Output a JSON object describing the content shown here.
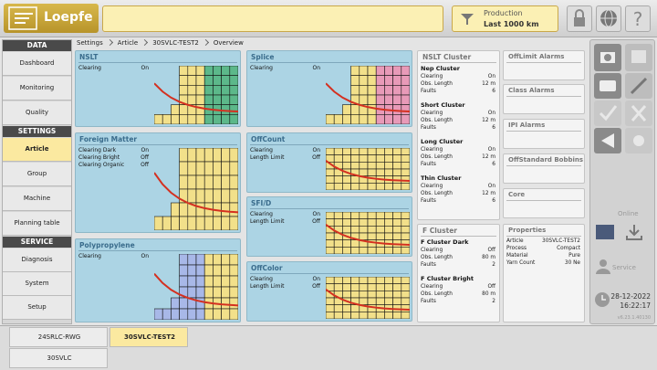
{
  "header": {
    "logo": "Loepfe",
    "production_label": "Production",
    "production_value": "Last 1000 km"
  },
  "sidebar": [
    {
      "title": "DATA",
      "items": [
        {
          "label": "Dashboard"
        },
        {
          "label": "Monitoring"
        },
        {
          "label": "Quality"
        }
      ]
    },
    {
      "title": "SETTINGS",
      "items": [
        {
          "label": "Article",
          "selected": true
        },
        {
          "label": "Group"
        },
        {
          "label": "Machine"
        },
        {
          "label": "Planning table"
        }
      ]
    },
    {
      "title": "SERVICE",
      "items": [
        {
          "label": "Diagnosis"
        },
        {
          "label": "System"
        },
        {
          "label": "Setup"
        }
      ]
    }
  ],
  "breadcrumb": [
    "Settings",
    "Article",
    "30SVLC-TEST2",
    "Overview"
  ],
  "panels": [
    {
      "title": "NSLT",
      "rows": [
        [
          "Clearing",
          "On"
        ]
      ]
    },
    {
      "title": "Foreign Matter",
      "rows": [
        [
          "Clearing Dark",
          "On"
        ],
        [
          "Clearing Bright",
          "Off"
        ],
        [
          "Clearing Organic",
          "Off"
        ]
      ]
    },
    {
      "title": "Polypropylene",
      "rows": [
        [
          "Clearing",
          "On"
        ]
      ]
    },
    {
      "title": "Splice",
      "rows": [
        [
          "Clearing",
          "On"
        ]
      ]
    },
    {
      "title": "OffCount",
      "rows": [
        [
          "Clearing",
          "On"
        ],
        [
          "Length Limit",
          "Off"
        ]
      ]
    },
    {
      "title": "SFI/D",
      "rows": [
        [
          "Clearing",
          "On"
        ],
        [
          "Length Limit",
          "Off"
        ]
      ]
    },
    {
      "title": "OffColor",
      "rows": [
        [
          "Clearing",
          "On"
        ],
        [
          "Length Limit",
          "Off"
        ]
      ]
    }
  ],
  "clusters": [
    {
      "title": "NSLT Cluster",
      "groups": [
        {
          "name": "Nep Cluster",
          "rows": [
            [
              "Clearing",
              "On"
            ],
            [
              "Obs. Length",
              "12 m"
            ],
            [
              "Faults",
              "6"
            ]
          ]
        },
        {
          "name": "Short Cluster",
          "rows": [
            [
              "Clearing",
              "On"
            ],
            [
              "Obs. Length",
              "12 m"
            ],
            [
              "Faults",
              "6"
            ]
          ]
        },
        {
          "name": "Long Cluster",
          "rows": [
            [
              "Clearing",
              "On"
            ],
            [
              "Obs. Length",
              "12 m"
            ],
            [
              "Faults",
              "6"
            ]
          ]
        },
        {
          "name": "Thin Cluster",
          "rows": [
            [
              "Clearing",
              "On"
            ],
            [
              "Obs. Length",
              "12 m"
            ],
            [
              "Faults",
              "6"
            ]
          ]
        }
      ]
    },
    {
      "title": "F Cluster",
      "groups": [
        {
          "name": "F Cluster Dark",
          "rows": [
            [
              "Clearing",
              "Off"
            ],
            [
              "Obs. Length",
              "80 m"
            ],
            [
              "Faults",
              "2"
            ]
          ]
        },
        {
          "name": "F Cluster Bright",
          "rows": [
            [
              "Clearing",
              "Off"
            ],
            [
              "Obs. Length",
              "80 m"
            ],
            [
              "Faults",
              "2"
            ]
          ]
        }
      ]
    }
  ],
  "boxes": [
    "OffLimit Alarms",
    "Class Alarms",
    "IPI Alarms",
    "OffStandard Bobbins",
    "Core"
  ],
  "properties": {
    "title": "Properties",
    "rows": [
      [
        "Article",
        "30SVLC-TEST2"
      ],
      [
        "Process",
        "Compact"
      ],
      [
        "Material",
        "Pure"
      ],
      [
        "Yarn Count",
        "30 Ne"
      ]
    ]
  },
  "status": {
    "online": "Online",
    "service": "Service",
    "date": "28-12-2022",
    "time": "16:22:17",
    "version": "v6.23.1.40130"
  },
  "tabs": [
    {
      "label": "24SRLC-RWG"
    },
    {
      "label": "30SVLC-TEST2",
      "selected": true
    },
    {
      "label": "30SVLC"
    }
  ]
}
